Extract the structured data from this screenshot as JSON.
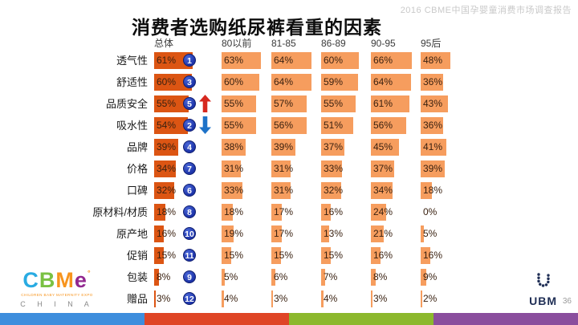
{
  "watermark": "2016 CBME中国孕婴童消费市场调查报告",
  "title": "消费者选购纸尿裤看重的因素",
  "chart_data": {
    "type": "bar",
    "orientation": "horizontal",
    "unit": "%",
    "group_headers": [
      "总体",
      "80以前",
      "81-85",
      "86-89",
      "90-95",
      "95后"
    ],
    "categories": [
      "透气性",
      "舒适性",
      "品质安全",
      "吸水性",
      "品牌",
      "价格",
      "口碑",
      "原材料/材质",
      "原产地",
      "促销",
      "包装",
      "赠品"
    ],
    "series": [
      {
        "name": "总体",
        "values": [
          61,
          60,
          55,
          54,
          39,
          34,
          32,
          18,
          16,
          15,
          8,
          3
        ]
      },
      {
        "name": "80以前",
        "values": [
          63,
          60,
          55,
          55,
          38,
          31,
          33,
          18,
          19,
          15,
          5,
          4
        ]
      },
      {
        "name": "81-85",
        "values": [
          64,
          64,
          57,
          56,
          39,
          31,
          31,
          17,
          17,
          15,
          6,
          3
        ]
      },
      {
        "name": "86-89",
        "values": [
          60,
          59,
          55,
          51,
          37,
          33,
          32,
          16,
          13,
          15,
          7,
          4
        ]
      },
      {
        "name": "90-95",
        "values": [
          66,
          64,
          61,
          56,
          45,
          37,
          34,
          24,
          21,
          16,
          8,
          3
        ]
      },
      {
        "name": "95后",
        "values": [
          48,
          36,
          43,
          36,
          41,
          39,
          18,
          0,
          5,
          16,
          9,
          2
        ]
      }
    ],
    "overall_ranks": [
      1,
      3,
      5,
      2,
      4,
      7,
      6,
      8,
      10,
      11,
      9,
      12
    ],
    "trends": [
      "",
      "",
      "up",
      "down",
      "",
      "",
      "",
      "",
      "",
      "",
      "",
      ""
    ],
    "xlim": [
      0,
      100
    ],
    "grid": false,
    "legend": false
  },
  "colors": {
    "overall_bar": "#DC5513",
    "group_bar": "#F69D5E",
    "rank_badge": "#1C33A8",
    "rank_badge_light": "#4a67d8",
    "arrow_up": "#D6281E",
    "arrow_down": "#1D72C8",
    "stripe_segments": [
      "#3E8EDD",
      "#DF4526",
      "#8CB82D",
      "#8A4E9D"
    ]
  },
  "footer": {
    "cbme": {
      "letters": [
        {
          "char": "C",
          "color": "#29ABE2"
        },
        {
          "char": "B",
          "color": "#7AC143"
        },
        {
          "char": "M",
          "color": "#F7941D"
        },
        {
          "char": "e",
          "color": "#92278F"
        }
      ],
      "reg_mark": "°",
      "reg_color": "#F7941D",
      "tagline": "CHILDREN BABY MATERNITY EXPO",
      "tagline_color": "#F7941D",
      "country": "C H I N A"
    },
    "ubm_label": "UBM",
    "page_number": "36"
  }
}
